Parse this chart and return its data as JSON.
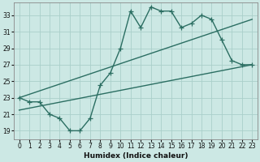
{
  "title": "",
  "xlabel": "Humidex (Indice chaleur)",
  "ylabel": "",
  "bg_color": "#cce8e4",
  "grid_color": "#aacfca",
  "line_color": "#2b6e62",
  "xlim": [
    -0.5,
    23.5
  ],
  "ylim": [
    18.0,
    34.5
  ],
  "xticks": [
    0,
    1,
    2,
    3,
    4,
    5,
    6,
    7,
    8,
    9,
    10,
    11,
    12,
    13,
    14,
    15,
    16,
    17,
    18,
    19,
    20,
    21,
    22,
    23
  ],
  "yticks": [
    19,
    21,
    23,
    25,
    27,
    29,
    31,
    33
  ],
  "main_x": [
    0,
    1,
    2,
    3,
    4,
    5,
    6,
    7,
    8,
    9,
    10,
    11,
    12,
    13,
    14,
    15,
    16,
    17,
    18,
    19,
    20,
    21,
    22,
    23
  ],
  "main_y": [
    23,
    22.5,
    22.5,
    21,
    20.5,
    19.0,
    19.0,
    20.5,
    24.5,
    26.0,
    29.0,
    33.5,
    31.5,
    34.0,
    33.5,
    33.5,
    31.5,
    32.0,
    33.0,
    32.5,
    30.0,
    27.5,
    27.0,
    27.0
  ],
  "trend1_x": [
    0,
    23
  ],
  "trend1_y": [
    23.0,
    32.5
  ],
  "trend2_x": [
    0,
    23
  ],
  "trend2_y": [
    21.5,
    27.0
  ],
  "marker_size": 3,
  "line_width": 1.0,
  "tick_fontsize": 5.5,
  "xlabel_fontsize": 6.5
}
